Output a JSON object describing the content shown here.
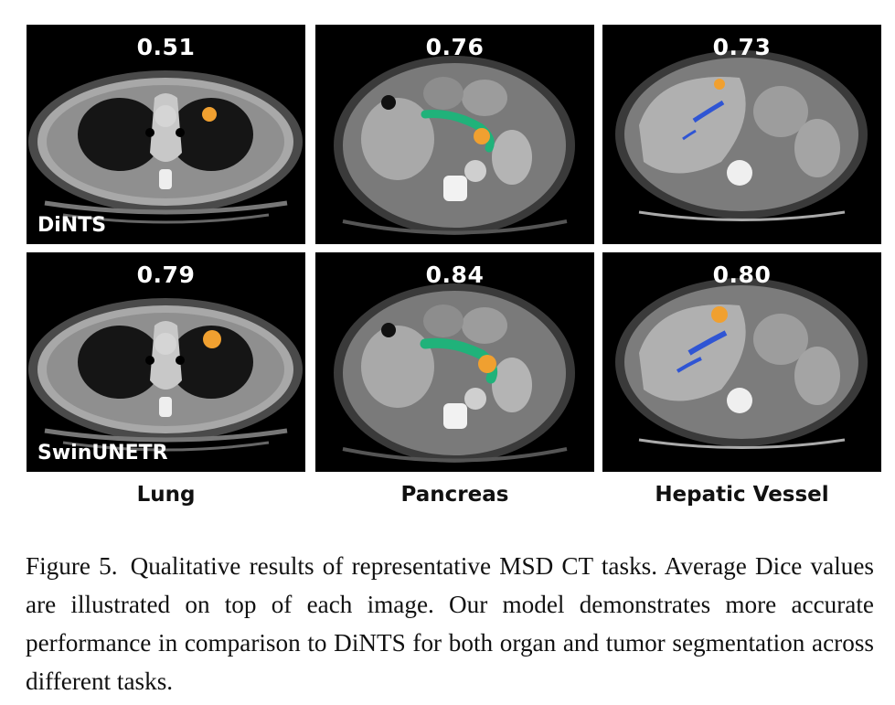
{
  "figure": {
    "rows": [
      {
        "method": "DiNTS",
        "panels": [
          {
            "task": "lung",
            "dice": "0.51"
          },
          {
            "task": "pancreas",
            "dice": "0.76"
          },
          {
            "task": "hepatic-vessel",
            "dice": "0.73"
          }
        ]
      },
      {
        "method": "SwinUNETR",
        "panels": [
          {
            "task": "lung",
            "dice": "0.79"
          },
          {
            "task": "pancreas",
            "dice": "0.84"
          },
          {
            "task": "hepatic-vessel",
            "dice": "0.80"
          }
        ]
      }
    ],
    "columns": [
      "Lung",
      "Pancreas",
      "Hepatic Vessel"
    ]
  },
  "caption": {
    "label": "Figure 5.",
    "text": "Qualitative results of representative MSD CT tasks. Average Dice values are illustrated on top of each image. Our model demonstrates more accurate performance in comparison to DiNTS for both organ and tumor segmentation across different tasks."
  },
  "colors": {
    "tumor": "#f0a030",
    "pancreas_mask": "#20b27a",
    "vessel_mask": "#2f55d4",
    "background": "#000000"
  }
}
